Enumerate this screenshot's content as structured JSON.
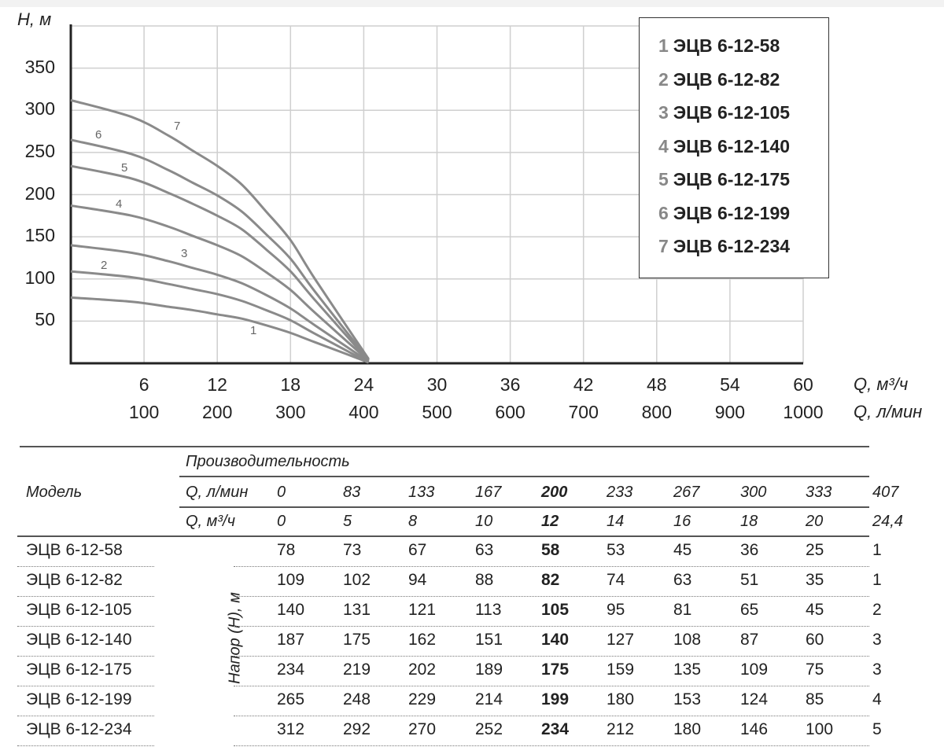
{
  "chart_data": {
    "type": "line",
    "ylabel": "H, м",
    "xlabel_primary": "Q, м³/ч",
    "xlabel_secondary": "Q, л/мин",
    "ylim": [
      0,
      400
    ],
    "xlim": [
      0,
      60
    ],
    "y_ticks": [
      "50",
      "100",
      "150",
      "200",
      "250",
      "300",
      "350"
    ],
    "x_ticks_m3h": [
      "6",
      "12",
      "18",
      "24",
      "30",
      "36",
      "42",
      "48",
      "54",
      "60"
    ],
    "x_ticks_lmin": [
      "100",
      "200",
      "300",
      "400",
      "500",
      "600",
      "700",
      "800",
      "900",
      "1000"
    ],
    "grid": true,
    "legend_position": "top-right",
    "x": [
      0,
      5,
      8,
      10,
      12,
      14,
      16,
      18,
      20,
      24.4
    ],
    "series": [
      {
        "id": "1",
        "name": "ЭЦВ 6-12-58",
        "values": [
          78,
          73,
          67,
          63,
          58,
          53,
          45,
          36,
          25,
          1
        ]
      },
      {
        "id": "2",
        "name": "ЭЦВ 6-12-82",
        "values": [
          109,
          102,
          94,
          88,
          82,
          74,
          63,
          51,
          35,
          1
        ]
      },
      {
        "id": "3",
        "name": "ЭЦВ 6-12-105",
        "values": [
          140,
          131,
          121,
          113,
          105,
          95,
          81,
          65,
          45,
          2
        ]
      },
      {
        "id": "4",
        "name": "ЭЦВ 6-12-140",
        "values": [
          187,
          175,
          162,
          151,
          140,
          127,
          108,
          87,
          60,
          3
        ]
      },
      {
        "id": "5",
        "name": "ЭЦВ 6-12-175",
        "values": [
          234,
          219,
          202,
          189,
          175,
          159,
          135,
          109,
          75,
          3
        ]
      },
      {
        "id": "6",
        "name": "ЭЦВ 6-12-199",
        "values": [
          265,
          248,
          229,
          214,
          199,
          180,
          153,
          124,
          85,
          4
        ]
      },
      {
        "id": "7",
        "name": "ЭЦВ 6-12-234",
        "values": [
          312,
          292,
          270,
          252,
          234,
          212,
          180,
          146,
          100,
          5
        ]
      }
    ],
    "colors": {
      "curve": "#8a8a8a",
      "grid": "#cfcfcf",
      "axis": "#222222"
    }
  },
  "table": {
    "model_header": "Модель",
    "performance_header": "Производительность",
    "q_lmin_label": "Q, л/мин",
    "q_m3h_label": "Q, м³/ч",
    "head_label": "Напор (Н), м",
    "q_lmin": [
      "0",
      "83",
      "133",
      "167",
      "200",
      "233",
      "267",
      "300",
      "333",
      "407"
    ],
    "q_m3h": [
      "0",
      "5",
      "8",
      "10",
      "12",
      "14",
      "16",
      "18",
      "20",
      "24,4"
    ],
    "highlight_column": 4,
    "rows": [
      {
        "model": "ЭЦВ 6-12-58",
        "values": [
          "78",
          "73",
          "67",
          "63",
          "58",
          "53",
          "45",
          "36",
          "25",
          "1"
        ]
      },
      {
        "model": "ЭЦВ 6-12-82",
        "values": [
          "109",
          "102",
          "94",
          "88",
          "82",
          "74",
          "63",
          "51",
          "35",
          "1"
        ]
      },
      {
        "model": "ЭЦВ 6-12-105",
        "values": [
          "140",
          "131",
          "121",
          "113",
          "105",
          "95",
          "81",
          "65",
          "45",
          "2"
        ]
      },
      {
        "model": "ЭЦВ 6-12-140",
        "values": [
          "187",
          "175",
          "162",
          "151",
          "140",
          "127",
          "108",
          "87",
          "60",
          "3"
        ]
      },
      {
        "model": "ЭЦВ 6-12-175",
        "values": [
          "234",
          "219",
          "202",
          "189",
          "175",
          "159",
          "135",
          "109",
          "75",
          "3"
        ]
      },
      {
        "model": "ЭЦВ 6-12-199",
        "values": [
          "265",
          "248",
          "229",
          "214",
          "199",
          "180",
          "153",
          "124",
          "85",
          "4"
        ]
      },
      {
        "model": "ЭЦВ 6-12-234",
        "values": [
          "312",
          "292",
          "270",
          "252",
          "234",
          "212",
          "180",
          "146",
          "100",
          "5"
        ]
      }
    ]
  }
}
